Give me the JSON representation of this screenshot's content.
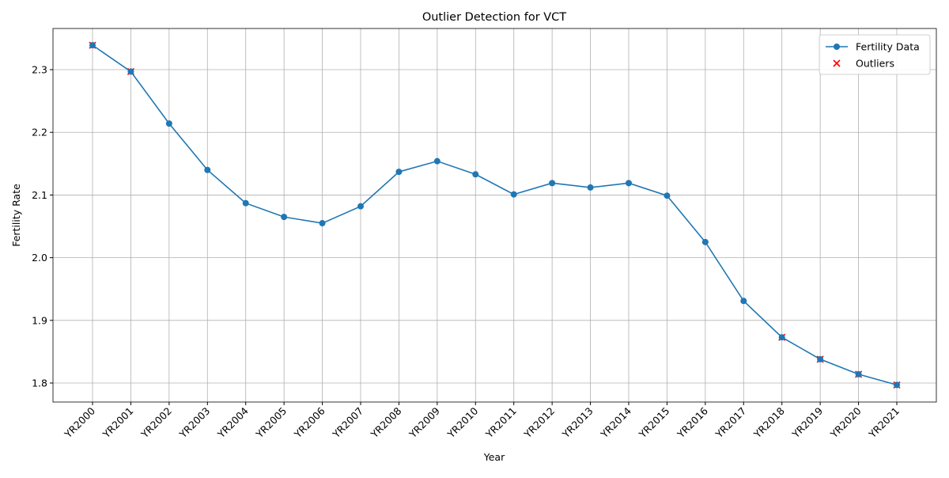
{
  "chart_data": {
    "type": "line",
    "title": "Outlier Detection for VCT",
    "x_label": "Year",
    "y_label": "Fertility Rate",
    "categories": [
      "YR2000",
      "YR2001",
      "YR2002",
      "YR2003",
      "YR2004",
      "YR2005",
      "YR2006",
      "YR2007",
      "YR2008",
      "YR2009",
      "YR2010",
      "YR2011",
      "YR2012",
      "YR2013",
      "YR2014",
      "YR2015",
      "YR2016",
      "YR2017",
      "YR2018",
      "YR2019",
      "YR2020",
      "YR2021"
    ],
    "series": [
      {
        "name": "Fertility Data",
        "color": "#1f77b4",
        "marker": "o",
        "values": [
          2.339,
          2.297,
          2.214,
          2.14,
          2.087,
          2.065,
          2.055,
          2.082,
          2.137,
          2.154,
          2.133,
          2.101,
          2.119,
          2.112,
          2.119,
          2.099,
          2.025,
          1.931,
          1.873,
          1.838,
          1.814,
          1.797
        ]
      },
      {
        "name": "Outliers",
        "color": "#ff0000",
        "marker": "x",
        "values": [
          2.339,
          2.297,
          null,
          null,
          null,
          null,
          null,
          null,
          null,
          null,
          null,
          null,
          null,
          null,
          null,
          null,
          null,
          null,
          1.873,
          1.838,
          1.814,
          1.797
        ]
      }
    ],
    "ylim": [
      1.7697,
      2.3657
    ],
    "yticks": [
      {
        "value": 1.8,
        "label": "1.8"
      },
      {
        "value": 1.9,
        "label": "1.9"
      },
      {
        "value": 2.0,
        "label": "2.0"
      },
      {
        "value": 2.1,
        "label": "2.1"
      },
      {
        "value": 2.2,
        "label": "2.2"
      },
      {
        "value": 2.3,
        "label": "2.3"
      }
    ],
    "grid": true,
    "legend": "upper right"
  }
}
